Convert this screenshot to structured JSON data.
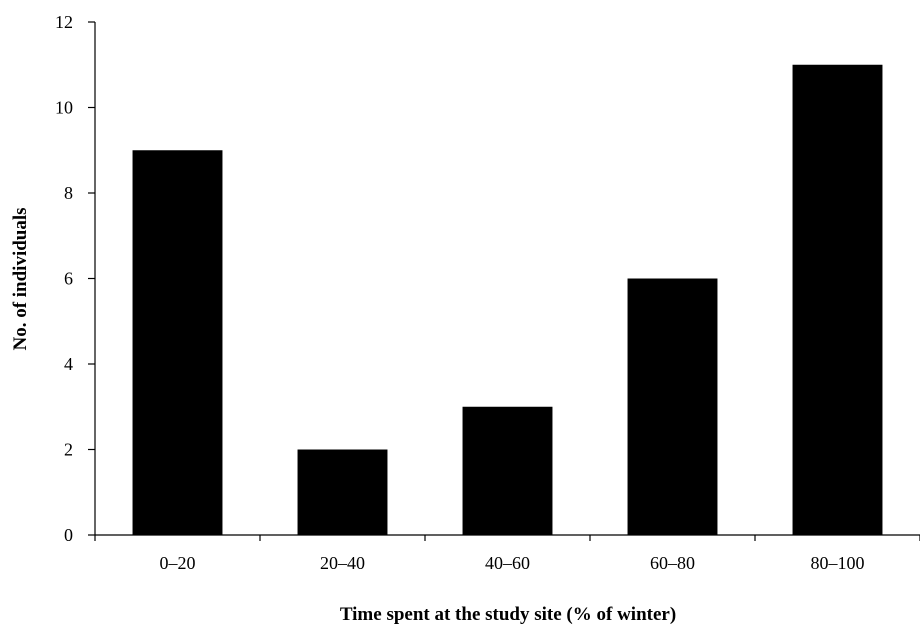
{
  "chart_data": {
    "type": "bar",
    "title": "",
    "xlabel": "Time spent at the study site (% of winter)",
    "ylabel": "No. of individuals",
    "categories": [
      "0–20",
      "20–40",
      "40–60",
      "60–80",
      "80–100"
    ],
    "values": [
      9,
      2,
      3,
      6,
      11
    ],
    "ylim": [
      0,
      12
    ],
    "yticks": [
      0,
      2,
      4,
      6,
      8,
      10,
      12
    ],
    "grid": false,
    "bar_color": "#000000"
  }
}
